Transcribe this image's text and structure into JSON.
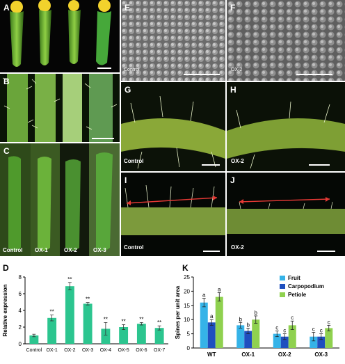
{
  "panels": {
    "A": "A",
    "B": "B",
    "C": "C",
    "D": "D",
    "E": "E",
    "F": "F",
    "G": "G",
    "H": "H",
    "I": "I",
    "J": "J",
    "K": "K"
  },
  "photo_captions": {
    "E": "Control",
    "F": "OX-2",
    "G": "Control",
    "H": "OX-2",
    "I": "Control",
    "J": "OX-2",
    "C1": "Control",
    "C2": "OX-1",
    "C3": "OX-2",
    "C4": "OX-3"
  },
  "colors": {
    "fruit": "#35b3e8",
    "carpopodium": "#1f4fbf",
    "petiole": "#8fd14f",
    "expression_bar": "#2cc58f"
  },
  "chart_data": [
    {
      "type": "bar",
      "panel": "D",
      "ylabel": "Relative expression",
      "categories": [
        "Control",
        "OX-1",
        "OX-2",
        "OX-3",
        "OX-4",
        "OX-5",
        "OX-6",
        "OX-7"
      ],
      "values": [
        1.0,
        3.1,
        6.9,
        4.8,
        1.8,
        2.0,
        2.4,
        1.9
      ],
      "errors": [
        0.15,
        0.35,
        0.45,
        0.15,
        0.75,
        0.3,
        0.15,
        0.25
      ],
      "annotations": [
        "",
        "**",
        "**",
        "**",
        "**",
        "**",
        "**",
        "**"
      ],
      "ylim": [
        0,
        8
      ],
      "yticks": [
        "0",
        "2",
        "4",
        "6",
        "8"
      ]
    },
    {
      "type": "bar",
      "panel": "K",
      "ylabel": "Spines per unit area",
      "categories": [
        "WT",
        "OX-1",
        "OX-2",
        "OX-3"
      ],
      "series": [
        {
          "name": "Fruit",
          "values": [
            16,
            8,
            5,
            4
          ],
          "errors": [
            1.5,
            1,
            1,
            1.5
          ],
          "letters": [
            "a",
            "b",
            "c",
            "c"
          ]
        },
        {
          "name": "Carpopodium",
          "values": [
            9,
            6,
            4,
            4
          ],
          "errors": [
            1,
            1,
            1,
            1
          ],
          "letters": [
            "a",
            "b",
            "c",
            "c"
          ]
        },
        {
          "name": "Petiole",
          "values": [
            18,
            10,
            8,
            7
          ],
          "errors": [
            1.5,
            1.3,
            1.5,
            1
          ],
          "letters": [
            "a",
            "b",
            "c",
            "c"
          ]
        }
      ],
      "ylim": [
        0,
        25
      ],
      "yticks": [
        "0",
        "5",
        "10",
        "15",
        "20",
        "25"
      ],
      "legend": "top-right"
    }
  ]
}
